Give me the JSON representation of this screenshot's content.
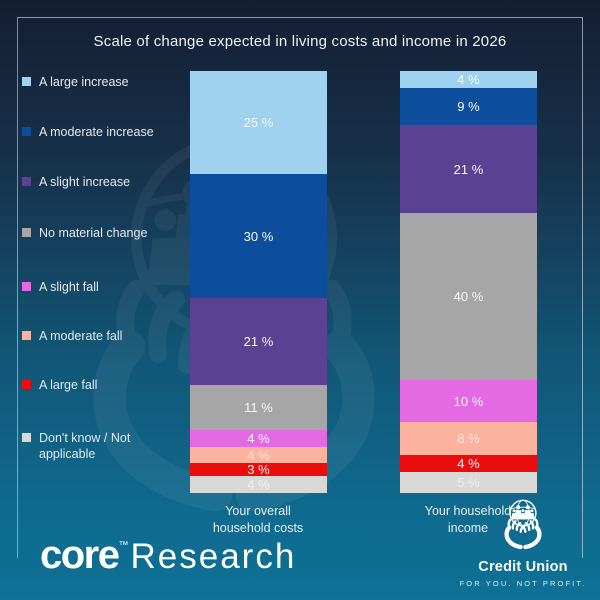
{
  "title": "Scale of change expected in living costs and income in 2026",
  "chart_data": {
    "type": "bar",
    "stacked": true,
    "orientation": "vertical",
    "title": "Scale of change expected in living costs and income in 2026",
    "categories": [
      "Your overall household costs",
      "Your household income"
    ],
    "series": [
      {
        "name": "A large increase",
        "color": "#9fd2ef",
        "values": [
          25,
          4
        ],
        "labels": [
          "25 %",
          "4 %"
        ]
      },
      {
        "name": "A moderate increase",
        "color": "#0d4e9c",
        "values": [
          30,
          9
        ],
        "labels": [
          "30 %",
          "9 %"
        ]
      },
      {
        "name": "A slight increase",
        "color": "#5b4191",
        "values": [
          21,
          21
        ],
        "labels": [
          "21 %",
          "21 %"
        ]
      },
      {
        "name": "No material change",
        "color": "#a6a6a6",
        "values": [
          11,
          40
        ],
        "labels": [
          "11 %",
          "40 %"
        ]
      },
      {
        "name": "A slight fall",
        "color": "#e36ae3",
        "values": [
          4,
          10
        ],
        "labels": [
          "4 %",
          "10 %"
        ]
      },
      {
        "name": "A moderate fall",
        "color": "#fbb29e",
        "values": [
          4,
          8
        ],
        "labels": [
          "4 %",
          "8 %"
        ]
      },
      {
        "name": "A large fall",
        "color": "#e90d0d",
        "values": [
          3,
          4
        ],
        "labels": [
          "3 %",
          "4 %"
        ]
      },
      {
        "name": "Don't know / Not applicable",
        "color": "#d9d9d9",
        "values": [
          4,
          5
        ],
        "labels": [
          "4 %",
          "5 %"
        ]
      }
    ],
    "value_suffix": " %",
    "legend_position": "left",
    "grid": false,
    "data_labels": true
  },
  "colors": {
    "background_top": "#141e33",
    "background_bottom": "#0e7195",
    "frame_border": "#d4e2f0",
    "text": "#eef3f8"
  },
  "icons": {
    "watermark": "credit-union-hands-globe",
    "emblem": "credit-union-hands-globe"
  },
  "footer": {
    "core_brand": {
      "name": "core",
      "tm": "™",
      "suffix": "Research"
    },
    "credit_union": {
      "name": "Credit Union",
      "tagline": "FOR YOU. NOT PROFIT."
    }
  }
}
